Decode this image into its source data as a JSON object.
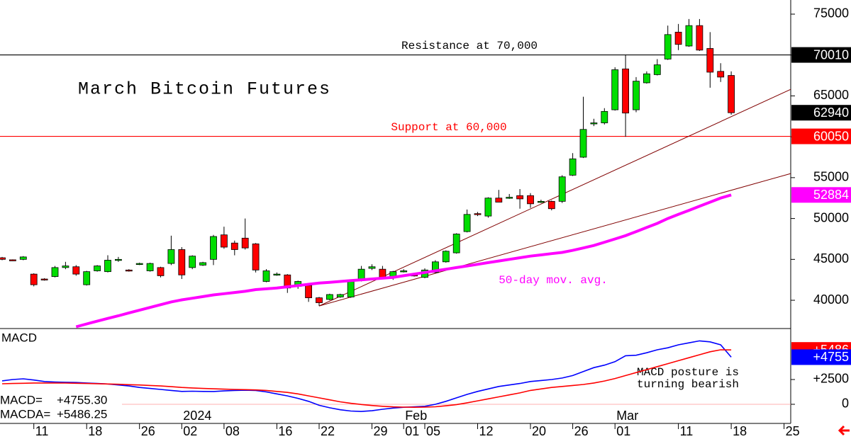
{
  "chart_data": [
    {
      "type": "candlestick",
      "title": "March Bitcoin Futures",
      "categories": [
        null,
        null,
        null,
        "11",
        null,
        null,
        null,
        null,
        "18",
        null,
        null,
        null,
        null,
        "26",
        null,
        null,
        null,
        "02",
        null,
        null,
        null,
        "08",
        null,
        null,
        null,
        null,
        "16",
        null,
        null,
        null,
        "22",
        null,
        null,
        null,
        null,
        "29",
        null,
        null,
        "01",
        null,
        "05",
        null,
        null,
        null,
        null,
        "12",
        null,
        null,
        null,
        null,
        "20",
        null,
        null,
        null,
        "26",
        null,
        null,
        null,
        "01",
        null,
        null,
        null,
        null,
        null,
        "11",
        null,
        null,
        null,
        null,
        "18",
        null,
        null,
        null,
        null,
        "25"
      ],
      "months": [
        null,
        null,
        null,
        null,
        null,
        null,
        null,
        null,
        null,
        null,
        null,
        null,
        null,
        null,
        null,
        null,
        null,
        "2024",
        null,
        null,
        null,
        null,
        null,
        null,
        null,
        null,
        null,
        null,
        null,
        null,
        null,
        null,
        null,
        null,
        null,
        null,
        null,
        null,
        "Feb",
        null,
        null,
        null,
        null,
        null,
        null,
        null,
        null,
        null,
        null,
        null,
        null,
        null,
        null,
        null,
        null,
        null,
        null,
        null,
        "Mar",
        null,
        null,
        null,
        null,
        null,
        null,
        null,
        null,
        null,
        null,
        null,
        null,
        null,
        null,
        null,
        null,
        null
      ],
      "open": [
        45200,
        44950,
        45000,
        43200,
        42600,
        42900,
        44000,
        44100,
        41900,
        43600,
        43500,
        44900,
        43700,
        44400,
        43600,
        44000,
        44500,
        46200,
        44000,
        44300,
        45000,
        48000,
        47000,
        47600,
        46900,
        42300,
        43100,
        43100,
        41700,
        41800,
        40300,
        40100,
        40400,
        40400,
        42500,
        43900,
        43800,
        42800,
        43500,
        43100,
        42800,
        43400,
        44700,
        45800,
        48400,
        50600,
        50300,
        52500,
        52500,
        52800,
        52800,
        52000,
        52100,
        52100,
        55300,
        57500,
        61600,
        61700,
        63300,
        68300,
        63300,
        66600,
        67600,
        69500,
        72800,
        71100,
        73600,
        70800,
        68000,
        67500,
        null,
        null,
        null,
        null,
        null
      ],
      "high": [
        45300,
        45000,
        45400,
        43300,
        42700,
        44200,
        44700,
        44300,
        43600,
        44300,
        45500,
        45300,
        43800,
        44600,
        44600,
        44100,
        47900,
        46500,
        45500,
        44700,
        48000,
        49000,
        47300,
        50000,
        47000,
        43800,
        43400,
        43200,
        42400,
        41900,
        40400,
        40800,
        40800,
        42500,
        44200,
        44400,
        44200,
        43600,
        43800,
        43300,
        43900,
        44900,
        46100,
        48200,
        51100,
        50800,
        52600,
        53500,
        53000,
        53600,
        53100,
        52300,
        52200,
        55300,
        58000,
        64900,
        62200,
        63500,
        68500,
        70000,
        67300,
        68000,
        69500,
        73600,
        73800,
        74400,
        74400,
        72800,
        69000,
        68000,
        null,
        null,
        null,
        null,
        null
      ],
      "low": [
        44900,
        44800,
        44900,
        41700,
        42400,
        42800,
        43800,
        43000,
        41800,
        43500,
        43400,
        44700,
        43500,
        44300,
        43500,
        42800,
        44300,
        42600,
        43800,
        44200,
        44300,
        46300,
        45500,
        46200,
        43400,
        42200,
        43000,
        40900,
        41400,
        39800,
        39300,
        40000,
        40300,
        40300,
        42300,
        43700,
        42600,
        42500,
        43400,
        42900,
        42700,
        43300,
        44600,
        45700,
        48300,
        50300,
        50100,
        52000,
        52400,
        51200,
        51300,
        51900,
        51000,
        51900,
        55200,
        57400,
        61300,
        61500,
        63200,
        60000,
        63000,
        66500,
        67500,
        69400,
        70600,
        71000,
        70500,
        66000,
        66700,
        62700,
        null,
        null,
        null,
        null,
        null
      ],
      "close": [
        45000,
        44900,
        45300,
        41900,
        42500,
        44000,
        44200,
        43200,
        43500,
        44200,
        44900,
        45000,
        43600,
        44500,
        44500,
        43000,
        46200,
        43100,
        45400,
        44600,
        47800,
        46500,
        46200,
        46400,
        43700,
        43600,
        43200,
        41500,
        42300,
        40300,
        39700,
        40700,
        40700,
        42400,
        43800,
        44100,
        42800,
        43500,
        43600,
        43000,
        43700,
        44700,
        46000,
        48100,
        50500,
        50500,
        52500,
        52000,
        52600,
        52400,
        51800,
        52100,
        51200,
        55100,
        57300,
        60900,
        61700,
        63100,
        68200,
        62900,
        66800,
        67700,
        68800,
        72500,
        71300,
        73600,
        70600,
        67900,
        67300,
        62940,
        null,
        null,
        null,
        null,
        null
      ],
      "up_color": "#00dd00",
      "down_color": "#ff0000",
      "series": [
        {
          "name": "50-day mov. avg.",
          "color": "#ff00ff",
          "values": [
            null,
            null,
            null,
            null,
            null,
            null,
            null,
            36760,
            37100,
            37440,
            37780,
            38100,
            38450,
            38780,
            39120,
            39460,
            39800,
            40050,
            40250,
            40450,
            40650,
            40800,
            40950,
            41100,
            41300,
            41400,
            41500,
            41650,
            41800,
            41950,
            42100,
            42200,
            42300,
            42400,
            42500,
            42600,
            42700,
            42800,
            43000,
            43200,
            43400,
            43600,
            43800,
            44000,
            44200,
            44400,
            44600,
            44800,
            45000,
            45200,
            45400,
            45550,
            45700,
            45850,
            46100,
            46400,
            46700,
            47100,
            47500,
            47900,
            48400,
            48900,
            49400,
            50000,
            50500,
            51000,
            51500,
            52000,
            52500,
            52884,
            null,
            null,
            null,
            null,
            null
          ]
        }
      ],
      "lines": [
        {
          "value": 70010,
          "color": "#000000",
          "label": "Resistance at 70,000"
        },
        {
          "value": 60050,
          "color": "#ff0000",
          "label": "Support at 60,000"
        }
      ],
      "trendlines": [
        {
          "values": [
            39300,
            65800
          ],
          "color": "#800000"
        },
        {
          "values": [
            39300,
            55500
          ],
          "color": "#800000"
        }
      ],
      "ylim": [
        36540,
        76730
      ],
      "yticks": [
        40000,
        45000,
        50000,
        55000,
        60000,
        65000,
        70000,
        75000
      ]
    },
    {
      "type": "line",
      "title": "MACD",
      "series": [
        {
          "color": "#0000ff",
          "last_label": "+4755",
          "readout": {
            "label": "MACD=",
            "value": 4755.3,
            "value_label": "+4755.30"
          },
          "values": [
            2360,
            2500,
            2570,
            2450,
            2300,
            2250,
            2220,
            2200,
            2150,
            2100,
            2050,
            1950,
            1850,
            1700,
            1600,
            1500,
            1400,
            1300,
            1320,
            1300,
            1290,
            1350,
            1400,
            1420,
            1400,
            1250,
            1050,
            850,
            600,
            300,
            -100,
            -350,
            -550,
            -680,
            -720,
            -650,
            -500,
            -380,
            -300,
            -250,
            -200,
            0,
            300,
            650,
            1000,
            1300,
            1550,
            1800,
            1950,
            2100,
            2300,
            2400,
            2500,
            2650,
            2900,
            3300,
            3700,
            3950,
            4300,
            4900,
            4950,
            5200,
            5500,
            5700,
            6000,
            6200,
            6400,
            6300,
            6000,
            4755,
            null,
            null,
            null,
            null,
            null
          ]
        },
        {
          "color": "#ff0000",
          "last_label": "+5486",
          "readout": {
            "label": "MACDA=",
            "value": 5486.25,
            "value_label": "+5486.25"
          },
          "values": [
            2070,
            2100,
            2120,
            2150,
            2150,
            2150,
            2140,
            2120,
            2100,
            2080,
            2050,
            2020,
            1980,
            1950,
            1900,
            1850,
            1780,
            1700,
            1650,
            1600,
            1560,
            1530,
            1500,
            1480,
            1450,
            1400,
            1300,
            1200,
            1050,
            850,
            650,
            450,
            250,
            100,
            -20,
            -120,
            -200,
            -260,
            -290,
            -300,
            -290,
            -250,
            -150,
            -30,
            150,
            350,
            550,
            750,
            950,
            1150,
            1400,
            1550,
            1700,
            1800,
            1900,
            2000,
            2150,
            2350,
            2600,
            2900,
            3200,
            3500,
            3800,
            4100,
            4400,
            4700,
            5000,
            5300,
            5500,
            5486,
            null,
            null,
            null,
            null,
            null
          ]
        }
      ],
      "annotation": [
        "MACD posture is",
        "turning bearish"
      ],
      "ylim": [
        -1930,
        7500
      ],
      "yticks": [
        0,
        {
          "value": 2500,
          "label": "+2500"
        }
      ]
    }
  ]
}
